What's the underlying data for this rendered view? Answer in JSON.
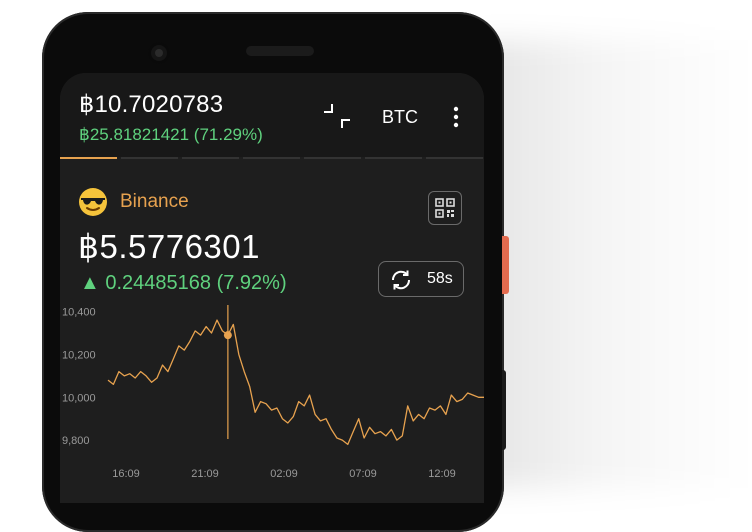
{
  "wallet": {
    "total": "฿10.7020783",
    "total_change": "฿25.81821421 (71.29%)",
    "currency": "BTC"
  },
  "account": {
    "emoji_icon": "sunglasses-emoji-icon",
    "name": "Binance",
    "balance": "฿5.5776301",
    "change": "▲ 0.24485168 (7.92%)",
    "refresh_timer": "58s"
  },
  "colors": {
    "accent": "#e7a24f",
    "positive": "#5fd17e",
    "background": "#1e1e1e"
  },
  "chart_data": {
    "type": "line",
    "title": "",
    "xlabel": "",
    "ylabel": "",
    "ylim": [
      9740,
      10440
    ],
    "y_ticks": [
      "10,400",
      "10,200",
      "10,000",
      "9,800"
    ],
    "x_ticks": [
      "16:09",
      "21:09",
      "02:09",
      "07:09",
      "12:09"
    ],
    "series": [
      {
        "values": [
          10080,
          10060,
          10120,
          10100,
          10110,
          10090,
          10120,
          10100,
          10070,
          10090,
          10150,
          10120,
          10180,
          10240,
          10220,
          10260,
          10310,
          10290,
          10330,
          10300,
          10360,
          10310,
          10290,
          10340,
          10200,
          10120,
          10050,
          9930,
          9980,
          9970,
          9940,
          9950,
          9900,
          9880,
          9910,
          9980,
          9960,
          10010,
          9920,
          9890,
          9900,
          9850,
          9810,
          9800,
          9780,
          9840,
          9900,
          9810,
          9860,
          9830,
          9840,
          9820,
          9850,
          9800,
          9820,
          9960,
          9890,
          9920,
          9900,
          9950,
          9940,
          9960,
          9920,
          10010,
          9980,
          9990,
          10020,
          10010,
          10000,
          10000
        ]
      }
    ],
    "marker_index": 22
  }
}
